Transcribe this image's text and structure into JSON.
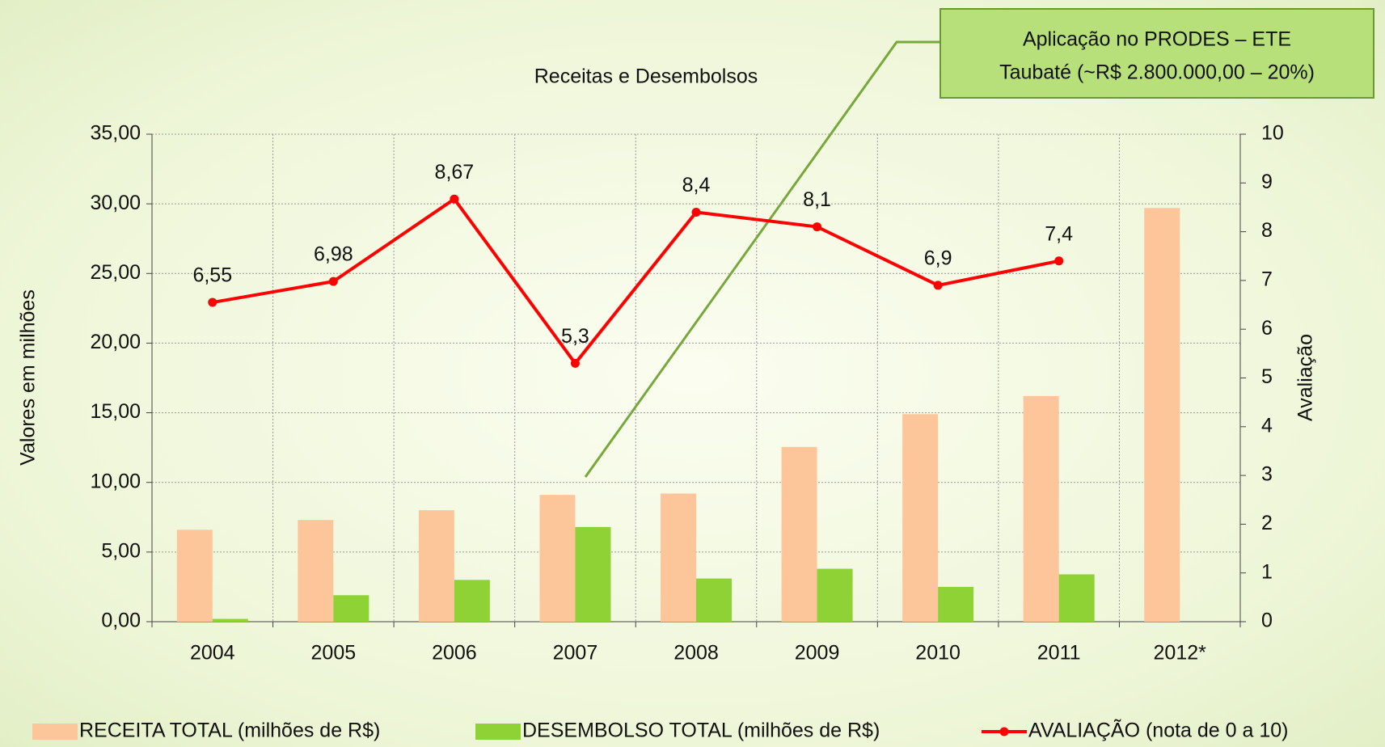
{
  "chart_data": {
    "type": "bar-line",
    "title": "Receitas e Desembolsos",
    "y_label": "Valores em milhões",
    "y2_label": "Avaliação",
    "annotation": [
      "Aplicação no PRODES – ETE",
      "Taubaté (~R$ 2.800.000,00 – 20%)"
    ],
    "categories": [
      "2004",
      "2005",
      "2006",
      "2007",
      "2008",
      "2009",
      "2010",
      "2011",
      "2012*"
    ],
    "series": [
      {
        "name": "RECEITA TOTAL (milhões de R$)",
        "type": "bar",
        "color": "#fcc69a",
        "values": [
          6.6,
          7.3,
          8.0,
          9.1,
          9.2,
          12.55,
          14.9,
          16.2,
          29.7
        ]
      },
      {
        "name": "DESEMBOLSO TOTAL (milhões de R$)",
        "type": "bar",
        "color": "#8fd236",
        "values": [
          0.2,
          1.9,
          3.0,
          6.8,
          3.1,
          3.8,
          2.5,
          3.4,
          null
        ]
      },
      {
        "name": "AVALIAÇÃO (nota de 0 a 10)",
        "type": "line",
        "axis": "y2",
        "color": "#ff0000",
        "values": [
          6.55,
          6.98,
          8.67,
          5.3,
          8.4,
          8.1,
          6.9,
          7.4,
          null
        ],
        "value_labels": [
          "6,55",
          "6,98",
          "8,67",
          "5,3",
          "8,4",
          "8,1",
          "6,9",
          "7,4",
          null
        ]
      }
    ],
    "ylim": [
      0,
      35
    ],
    "yticks": [
      {
        "value": 0,
        "label": "0,00"
      },
      {
        "value": 5,
        "label": "5,00"
      },
      {
        "value": 10,
        "label": "10,00"
      },
      {
        "value": 15,
        "label": "15,00"
      },
      {
        "value": 20,
        "label": "20,00"
      },
      {
        "value": 25,
        "label": "25,00"
      },
      {
        "value": 30,
        "label": "30,00"
      },
      {
        "value": 35,
        "label": "35,00"
      }
    ],
    "y2lim": [
      0,
      10
    ],
    "y2ticks": [
      0,
      1,
      2,
      3,
      4,
      5,
      6,
      7,
      8,
      9,
      10
    ],
    "grid": true,
    "legend": "bottom"
  }
}
